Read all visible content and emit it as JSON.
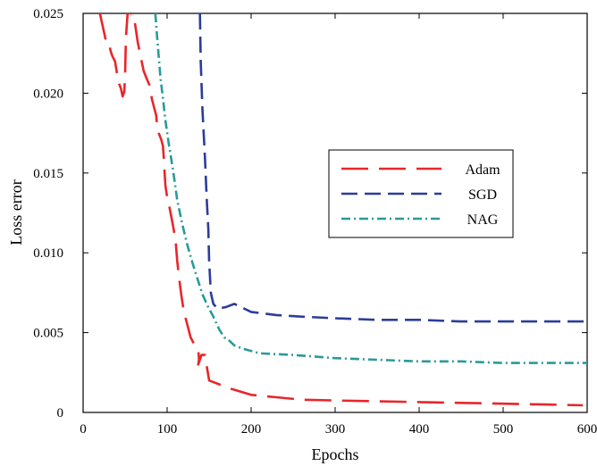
{
  "chart_data": {
    "type": "line",
    "xlabel": "Epochs",
    "ylabel": "Loss error",
    "xlim": [
      0,
      600
    ],
    "ylim": [
      0,
      0.025
    ],
    "x_ticks": [
      "0",
      "100",
      "200",
      "300",
      "400",
      "500",
      "600"
    ],
    "y_ticks": [
      "0",
      "0.005",
      "0.010",
      "0.015",
      "0.020",
      "0.025"
    ],
    "legend_position": "center-right",
    "grid": false,
    "series": [
      {
        "name": "Adam",
        "color": "#e8262a",
        "style": "long-dash",
        "points": [
          [
            20,
            0.025
          ],
          [
            25,
            0.0238
          ],
          [
            27,
            0.0233
          ],
          [
            30,
            0.0233
          ],
          [
            33,
            0.0226
          ],
          [
            35,
            0.0223
          ],
          [
            38,
            0.022
          ],
          [
            42,
            0.0207
          ],
          [
            45,
            0.0203
          ],
          [
            47,
            0.0198
          ],
          [
            49,
            0.0201
          ],
          [
            50,
            0.0212
          ],
          [
            51,
            0.0235
          ],
          [
            53,
            0.025
          ],
          [
            60,
            0.025
          ],
          [
            65,
            0.0232
          ],
          [
            72,
            0.0214
          ],
          [
            75,
            0.021
          ],
          [
            79,
            0.0205
          ],
          [
            82,
            0.0196
          ],
          [
            87,
            0.0186
          ],
          [
            88,
            0.018
          ],
          [
            90,
            0.0175
          ],
          [
            93,
            0.0171
          ],
          [
            95,
            0.0167
          ],
          [
            96,
            0.016
          ],
          [
            97,
            0.015
          ],
          [
            98,
            0.0142
          ],
          [
            100,
            0.0135
          ],
          [
            103,
            0.0128
          ],
          [
            107,
            0.0117
          ],
          [
            110,
            0.0108
          ],
          [
            112,
            0.0095
          ],
          [
            114,
            0.0085
          ],
          [
            117,
            0.0073
          ],
          [
            120,
            0.0063
          ],
          [
            124,
            0.0055
          ],
          [
            128,
            0.0047
          ],
          [
            132,
            0.0043
          ],
          [
            137,
            0.004
          ],
          [
            138,
            0.0033
          ],
          [
            137,
            0.003
          ],
          [
            141,
            0.0036
          ],
          [
            145,
            0.0036
          ],
          [
            150,
            0.002
          ],
          [
            175,
            0.0015
          ],
          [
            200,
            0.0011
          ],
          [
            230,
            0.00095
          ],
          [
            260,
            0.0008
          ],
          [
            300,
            0.00075
          ],
          [
            350,
            0.0007
          ],
          [
            400,
            0.00065
          ],
          [
            450,
            0.0006
          ],
          [
            500,
            0.00055
          ],
          [
            550,
            0.0005
          ],
          [
            595,
            0.00045
          ]
        ]
      },
      {
        "name": "SGD",
        "color": "#2b3d9a",
        "style": "dash",
        "points": [
          [
            139,
            0.025
          ],
          [
            140,
            0.022
          ],
          [
            142,
            0.019
          ],
          [
            145,
            0.016
          ],
          [
            147,
            0.0135
          ],
          [
            149,
            0.0115
          ],
          [
            150,
            0.0095
          ],
          [
            152,
            0.0075
          ],
          [
            155,
            0.0068
          ],
          [
            160,
            0.0065
          ],
          [
            170,
            0.0066
          ],
          [
            180,
            0.0068
          ],
          [
            200,
            0.0063
          ],
          [
            230,
            0.0061
          ],
          [
            260,
            0.006
          ],
          [
            300,
            0.0059
          ],
          [
            350,
            0.0058
          ],
          [
            400,
            0.0058
          ],
          [
            450,
            0.0057
          ],
          [
            500,
            0.0057
          ],
          [
            550,
            0.0057
          ],
          [
            600,
            0.0057
          ]
        ]
      },
      {
        "name": "NAG",
        "color": "#2a9a9a",
        "style": "dash-dot",
        "points": [
          [
            86,
            0.025
          ],
          [
            88,
            0.0236
          ],
          [
            90,
            0.0223
          ],
          [
            92,
            0.021
          ],
          [
            95,
            0.0197
          ],
          [
            98,
            0.0183
          ],
          [
            102,
            0.0168
          ],
          [
            107,
            0.0152
          ],
          [
            112,
            0.0133
          ],
          [
            118,
            0.0118
          ],
          [
            124,
            0.0105
          ],
          [
            130,
            0.0094
          ],
          [
            136,
            0.0084
          ],
          [
            142,
            0.0074
          ],
          [
            148,
            0.0067
          ],
          [
            155,
            0.006
          ],
          [
            162,
            0.0052
          ],
          [
            168,
            0.0047
          ],
          [
            172,
            0.0046
          ],
          [
            180,
            0.0042
          ],
          [
            190,
            0.004
          ],
          [
            210,
            0.0037
          ],
          [
            250,
            0.0036
          ],
          [
            300,
            0.0034
          ],
          [
            350,
            0.0033
          ],
          [
            400,
            0.0032
          ],
          [
            450,
            0.0032
          ],
          [
            500,
            0.0031
          ],
          [
            550,
            0.0031
          ],
          [
            600,
            0.0031
          ]
        ]
      }
    ]
  }
}
